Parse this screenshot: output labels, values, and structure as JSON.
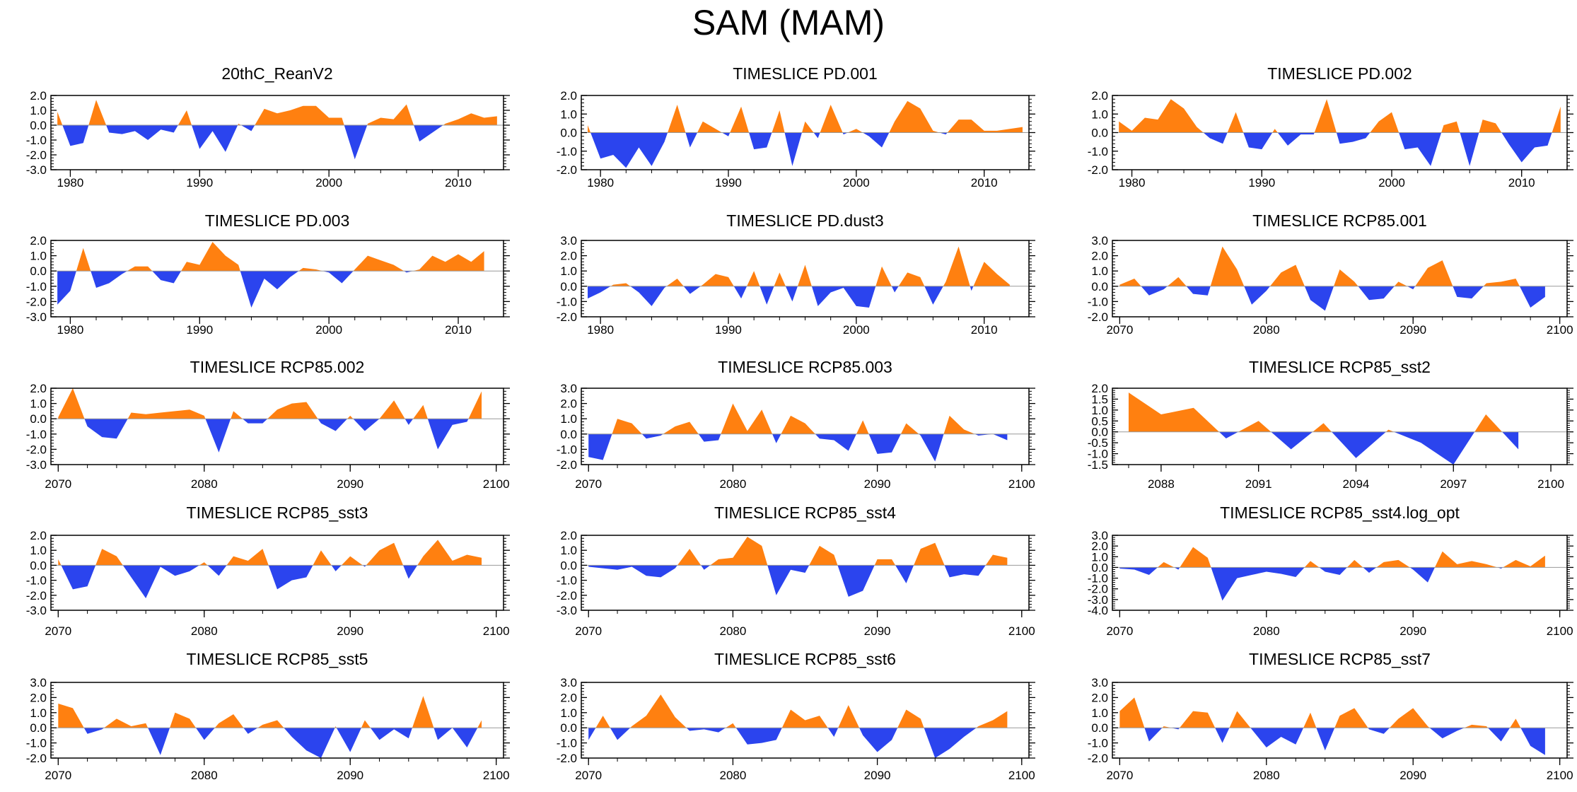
{
  "title": "SAM (MAM)",
  "colors": {
    "positive": "#ff8010",
    "negative": "#2b44ee",
    "axis": "#000000",
    "zero_line": "#999999"
  },
  "chart_data": [
    {
      "type": "area",
      "title": "20thC_ReanV2",
      "x_start": 1979,
      "xlim": [
        1978.5,
        2013.5
      ],
      "xticks": [
        1980,
        1990,
        2000,
        2010
      ],
      "ylim": [
        -3,
        2
      ],
      "yticks": [
        -3,
        -2,
        -1,
        0,
        1,
        2
      ],
      "values": [
        0.9,
        -1.4,
        -1.2,
        1.7,
        -0.5,
        -0.6,
        -0.4,
        -1.0,
        -0.3,
        -0.5,
        1.0,
        -1.6,
        -0.4,
        -1.8,
        0.1,
        -0.4,
        1.1,
        0.8,
        1.0,
        1.3,
        1.3,
        0.5,
        0.5,
        -2.3,
        0.1,
        0.5,
        0.4,
        1.4,
        -1.1,
        -0.5,
        0.1,
        0.4,
        0.8,
        0.5,
        0.6
      ]
    },
    {
      "type": "area",
      "title": "TIMESLICE PD.001",
      "x_start": 1979,
      "xlim": [
        1978.5,
        2013.5
      ],
      "xticks": [
        1980,
        1990,
        2000,
        2010
      ],
      "ylim": [
        -2,
        2
      ],
      "yticks": [
        -2,
        -1,
        0,
        1,
        2
      ],
      "values": [
        0.4,
        -1.4,
        -1.2,
        -1.9,
        -0.8,
        -1.8,
        -0.5,
        1.5,
        -0.8,
        0.6,
        0.2,
        -0.2,
        1.4,
        -0.9,
        -0.8,
        1.2,
        -1.8,
        0.6,
        -0.3,
        1.5,
        -0.1,
        0.2,
        -0.2,
        -0.8,
        0.6,
        1.7,
        1.3,
        0.1,
        -0.1,
        0.7,
        0.7,
        0.1,
        0.1,
        0.2,
        0.3
      ]
    },
    {
      "type": "area",
      "title": "TIMESLICE PD.002",
      "x_start": 1979,
      "xlim": [
        1978.5,
        2013.5
      ],
      "xticks": [
        1980,
        1990,
        2000,
        2010
      ],
      "ylim": [
        -2,
        2
      ],
      "yticks": [
        -2,
        -1,
        0,
        1,
        2
      ],
      "values": [
        0.6,
        0.1,
        0.8,
        0.7,
        1.8,
        1.3,
        0.3,
        -0.3,
        -0.6,
        1.1,
        -0.8,
        -0.9,
        0.2,
        -0.7,
        -0.1,
        -0.1,
        1.8,
        -0.6,
        -0.5,
        -0.3,
        0.6,
        1.1,
        -0.9,
        -0.8,
        -1.8,
        0.4,
        0.6,
        -1.8,
        0.7,
        0.5,
        -0.6,
        -1.6,
        -0.8,
        -0.7,
        1.4
      ]
    },
    {
      "type": "area",
      "title": "TIMESLICE PD.003",
      "x_start": 1979,
      "xlim": [
        1978.5,
        2013.5
      ],
      "xticks": [
        1980,
        1990,
        2000,
        2010
      ],
      "ylim": [
        -3,
        2
      ],
      "yticks": [
        -3,
        -2,
        -1,
        0,
        1,
        2
      ],
      "values": [
        -2.2,
        -1.3,
        1.5,
        -1.1,
        -0.8,
        -0.2,
        0.3,
        0.3,
        -0.6,
        -0.8,
        0.6,
        0.4,
        1.9,
        1.0,
        0.4,
        -2.4,
        -0.5,
        -1.2,
        -0.4,
        0.2,
        0.1,
        -0.1,
        -0.8,
        0.1,
        1.0,
        0.7,
        0.4,
        -0.1,
        0.1,
        1.0,
        0.6,
        1.1,
        0.6,
        1.3
      ]
    },
    {
      "type": "area",
      "title": "TIMESLICE PD.dust3",
      "x_start": 1979,
      "xlim": [
        1978.5,
        2013.5
      ],
      "xticks": [
        1980,
        1990,
        2000,
        2010
      ],
      "ylim": [
        -2,
        3
      ],
      "yticks": [
        -2,
        -1,
        0,
        1,
        2,
        3
      ],
      "values": [
        -0.8,
        -0.4,
        0.1,
        0.2,
        -0.4,
        -1.3,
        -0.1,
        0.5,
        -0.5,
        0.1,
        0.8,
        0.6,
        -0.8,
        1.0,
        -1.2,
        0.9,
        -1.0,
        1.4,
        -1.3,
        -0.4,
        -0.1,
        -1.3,
        -1.4,
        1.3,
        -0.4,
        0.9,
        0.6,
        -1.2,
        0.3,
        2.6,
        -0.3,
        1.6,
        0.8,
        0.1
      ]
    },
    {
      "type": "area",
      "title": "TIMESLICE RCP85.001",
      "x_start": 2070,
      "xlim": [
        2069.5,
        2100.5
      ],
      "xticks": [
        2070,
        2080,
        2090,
        2100
      ],
      "ylim": [
        -2,
        3
      ],
      "yticks": [
        -2,
        -1,
        0,
        1,
        2,
        3
      ],
      "values": [
        0.1,
        0.5,
        -0.6,
        -0.2,
        0.6,
        -0.5,
        -0.6,
        2.6,
        1.1,
        -1.2,
        -0.3,
        0.9,
        1.4,
        -0.9,
        -1.6,
        1.1,
        0.3,
        -0.9,
        -0.8,
        0.3,
        -0.2,
        1.2,
        1.7,
        -0.7,
        -0.8,
        0.2,
        0.3,
        0.5,
        -1.4,
        -0.7
      ]
    },
    {
      "type": "area",
      "title": "TIMESLICE RCP85.002",
      "x_start": 2070,
      "xlim": [
        2069.5,
        2100.5
      ],
      "xticks": [
        2070,
        2080,
        2090,
        2100
      ],
      "ylim": [
        -3,
        2
      ],
      "yticks": [
        -3,
        -2,
        -1,
        0,
        1,
        2
      ],
      "values": [
        0.1,
        2.0,
        -0.5,
        -1.2,
        -1.3,
        0.4,
        0.3,
        0.4,
        0.5,
        0.6,
        0.2,
        -2.2,
        0.5,
        -0.3,
        -0.3,
        0.6,
        1.0,
        1.1,
        -0.3,
        -0.8,
        0.2,
        -0.8,
        0.0,
        1.2,
        -0.4,
        0.9,
        -2.0,
        -0.4,
        -0.2,
        1.8
      ]
    },
    {
      "type": "area",
      "title": "TIMESLICE RCP85.003",
      "x_start": 2070,
      "xlim": [
        2069.5,
        2100.5
      ],
      "xticks": [
        2070,
        2080,
        2090,
        2100
      ],
      "ylim": [
        -2,
        3
      ],
      "yticks": [
        -2,
        -1,
        0,
        1,
        2,
        3
      ],
      "values": [
        -1.5,
        -1.7,
        1.0,
        0.7,
        -0.3,
        -0.1,
        0.5,
        0.8,
        -0.5,
        -0.4,
        2.0,
        0.2,
        1.6,
        -0.6,
        1.2,
        0.7,
        -0.3,
        -0.4,
        -1.1,
        0.9,
        -1.3,
        -1.2,
        0.7,
        -0.1,
        -1.8,
        1.2,
        0.3,
        -0.1,
        0.0,
        -0.4
      ]
    },
    {
      "type": "area",
      "title": "TIMESLICE RCP85_sst2",
      "x_start": 2087,
      "xlim": [
        2086.5,
        2100.5
      ],
      "xticks": [
        2088,
        2091,
        2094,
        2097,
        2100
      ],
      "ylim": [
        -1.5,
        2
      ],
      "yticks": [
        -1.5,
        -1.0,
        -0.5,
        0.0,
        0.5,
        1.0,
        1.5,
        2.0
      ],
      "values": [
        1.8,
        0.8,
        1.1,
        -0.3,
        0.5,
        -0.8,
        0.4,
        -1.2,
        0.1,
        -0.5,
        -1.5,
        0.8,
        -0.8
      ]
    },
    {
      "type": "area",
      "title": "TIMESLICE RCP85_sst3",
      "x_start": 2070,
      "xlim": [
        2069.5,
        2100.5
      ],
      "xticks": [
        2070,
        2080,
        2090,
        2100
      ],
      "ylim": [
        -3,
        2
      ],
      "yticks": [
        -3,
        -2,
        -1,
        0,
        1,
        2
      ],
      "values": [
        0.4,
        -1.6,
        -1.4,
        1.1,
        0.6,
        -0.8,
        -2.2,
        -0.1,
        -0.7,
        -0.4,
        0.2,
        -0.7,
        0.6,
        0.3,
        1.1,
        -1.6,
        -1.0,
        -0.8,
        1.0,
        -0.4,
        0.6,
        -0.1,
        1.0,
        1.5,
        -0.9,
        0.6,
        1.7,
        0.3,
        0.7,
        0.5
      ]
    },
    {
      "type": "area",
      "title": "TIMESLICE RCP85_sst4",
      "x_start": 2070,
      "xlim": [
        2069.5,
        2100.5
      ],
      "xticks": [
        2070,
        2080,
        2090,
        2100
      ],
      "ylim": [
        -3,
        2
      ],
      "yticks": [
        -3,
        -2,
        -1,
        0,
        1,
        2
      ],
      "values": [
        -0.1,
        -0.2,
        -0.3,
        -0.1,
        -0.7,
        -0.8,
        -0.2,
        1.1,
        -0.3,
        0.4,
        0.5,
        1.9,
        1.3,
        -2.0,
        -0.3,
        -0.5,
        1.3,
        0.7,
        -2.1,
        -1.7,
        0.4,
        0.4,
        -1.2,
        1.1,
        1.5,
        -0.8,
        -0.6,
        -0.7,
        0.7,
        0.5
      ]
    },
    {
      "type": "area",
      "title": "TIMESLICE RCP85_sst4.log_opt",
      "x_start": 2070,
      "xlim": [
        2069.5,
        2100.5
      ],
      "xticks": [
        2070,
        2080,
        2090,
        2100
      ],
      "ylim": [
        -4,
        3
      ],
      "yticks": [
        -4,
        -3,
        -2,
        -1,
        0,
        1,
        2,
        3
      ],
      "values": [
        -0.1,
        -0.2,
        -0.7,
        0.5,
        -0.2,
        1.9,
        0.9,
        -3.1,
        -1.0,
        -0.7,
        -0.4,
        -0.6,
        -0.9,
        0.6,
        -0.4,
        -0.7,
        0.7,
        -0.5,
        0.5,
        0.7,
        -0.2,
        -1.4,
        1.5,
        0.3,
        0.6,
        0.3,
        -0.1,
        0.7,
        0.1,
        1.1
      ]
    },
    {
      "type": "area",
      "title": "TIMESLICE RCP85_sst5",
      "x_start": 2070,
      "xlim": [
        2069.5,
        2100.5
      ],
      "xticks": [
        2070,
        2080,
        2090,
        2100
      ],
      "ylim": [
        -2,
        3
      ],
      "yticks": [
        -2,
        -1,
        0,
        1,
        2,
        3
      ],
      "values": [
        1.6,
        1.3,
        -0.4,
        -0.1,
        0.6,
        0.1,
        0.3,
        -1.8,
        1.0,
        0.6,
        -0.8,
        0.3,
        0.9,
        -0.4,
        0.2,
        0.5,
        -0.6,
        -1.5,
        -2.0,
        0.1,
        -1.6,
        0.5,
        -0.8,
        -0.1,
        -0.7,
        2.1,
        -0.8,
        0.0,
        -1.3,
        0.5
      ]
    },
    {
      "type": "area",
      "title": "TIMESLICE RCP85_sst6",
      "x_start": 2070,
      "xlim": [
        2069.5,
        2100.5
      ],
      "xticks": [
        2070,
        2080,
        2090,
        2100
      ],
      "ylim": [
        -2,
        3
      ],
      "yticks": [
        -2,
        -1,
        0,
        1,
        2,
        3
      ],
      "values": [
        -0.8,
        0.8,
        -0.8,
        0.1,
        0.8,
        2.2,
        0.7,
        -0.2,
        -0.1,
        -0.3,
        0.3,
        -1.1,
        -1.0,
        -0.8,
        1.2,
        0.5,
        0.8,
        -0.6,
        1.5,
        -0.5,
        -1.6,
        -0.8,
        1.2,
        0.6,
        -2.0,
        -1.4,
        -0.6,
        0.1,
        0.5,
        1.1
      ]
    },
    {
      "type": "area",
      "title": "TIMESLICE RCP85_sst7",
      "x_start": 2070,
      "xlim": [
        2069.5,
        2100.5
      ],
      "xticks": [
        2070,
        2080,
        2090,
        2100
      ],
      "ylim": [
        -2,
        3
      ],
      "yticks": [
        -2,
        -1,
        0,
        1,
        2,
        3
      ],
      "values": [
        1.1,
        2.0,
        -0.9,
        0.1,
        -0.1,
        1.1,
        1.0,
        -1.0,
        1.1,
        -0.1,
        -1.3,
        -0.6,
        -1.1,
        1.0,
        -1.5,
        0.8,
        1.3,
        -0.1,
        -0.4,
        0.6,
        1.3,
        0.1,
        -0.7,
        -0.2,
        0.2,
        0.1,
        -0.9,
        0.6,
        -1.2,
        -1.8
      ]
    }
  ]
}
